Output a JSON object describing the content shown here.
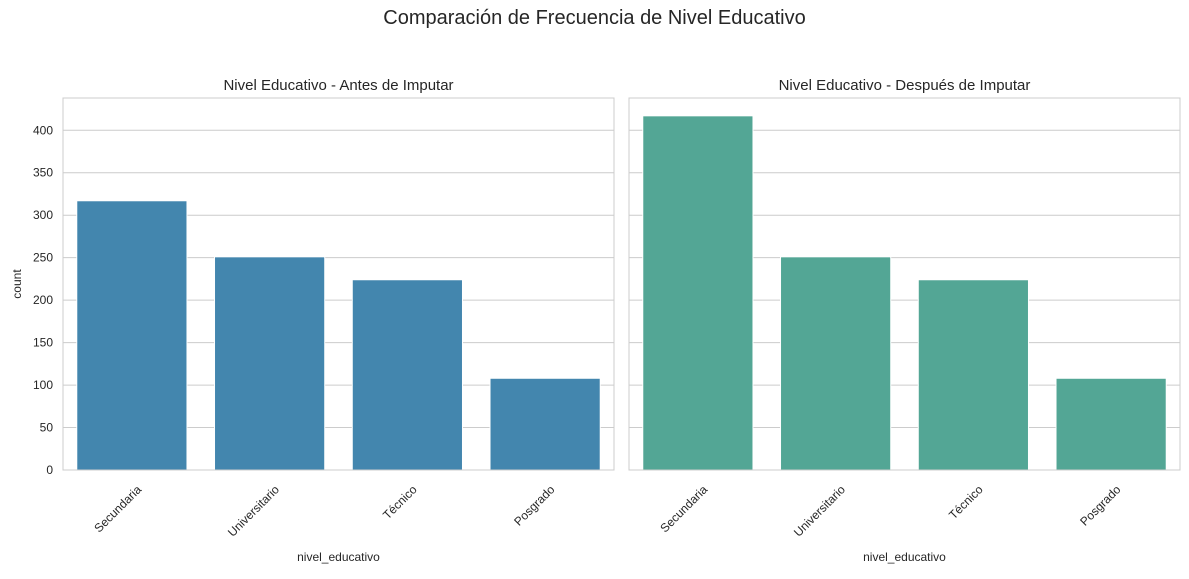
{
  "suptitle": "Comparación de Frecuencia de Nivel Educativo",
  "chart_data": [
    {
      "type": "bar",
      "title": "Nivel Educativo - Antes de Imputar",
      "xlabel": "nivel_educativo",
      "ylabel": "count",
      "categories": [
        "Secundaria",
        "Universitario",
        "Técnico",
        "Posgrado"
      ],
      "values": [
        317,
        251,
        224,
        108
      ],
      "ylim": [
        0,
        438
      ],
      "yticks": [
        0,
        50,
        100,
        150,
        200,
        250,
        300,
        350,
        400
      ],
      "color": "#4386ae",
      "grid": "y",
      "xtick_rotation": 45
    },
    {
      "type": "bar",
      "title": "Nivel Educativo - Después de Imputar",
      "xlabel": "nivel_educativo",
      "ylabel": "",
      "categories": [
        "Secundaria",
        "Universitario",
        "Técnico",
        "Posgrado"
      ],
      "values": [
        417,
        251,
        224,
        108
      ],
      "ylim": [
        0,
        438
      ],
      "yticks": [
        0,
        50,
        100,
        150,
        200,
        250,
        300,
        350,
        400
      ],
      "color": "#53a695",
      "grid": "y",
      "xtick_rotation": 45
    }
  ]
}
